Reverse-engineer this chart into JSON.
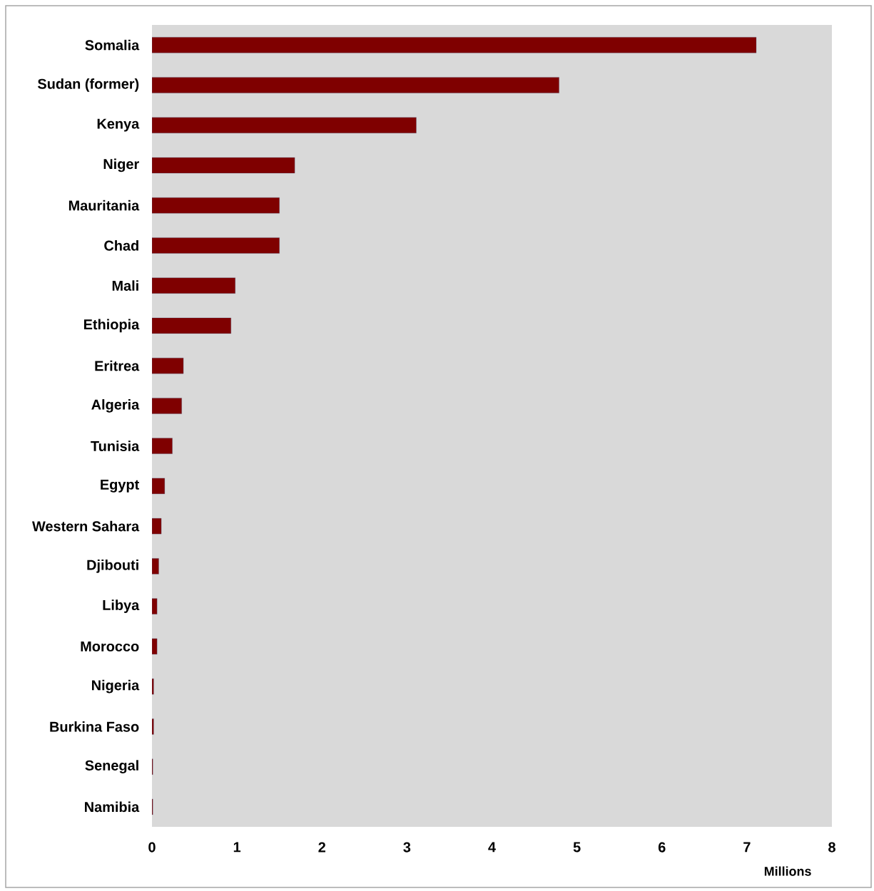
{
  "chart_data": {
    "type": "bar",
    "orientation": "horizontal",
    "xlabel": "Millions",
    "categories": [
      "Somalia",
      "Sudan (former)",
      "Kenya",
      "Niger",
      "Mauritania",
      "Chad",
      "Mali",
      "Ethiopia",
      "Eritrea",
      "Algeria",
      "Tunisia",
      "Egypt",
      "Western Sahara",
      "Djibouti",
      "Libya",
      "Morocco",
      "Nigeria",
      "Burkina Faso",
      "Senegal",
      "Namibia"
    ],
    "values": [
      7.11,
      4.79,
      3.11,
      1.68,
      1.5,
      1.5,
      0.98,
      0.93,
      0.37,
      0.35,
      0.24,
      0.15,
      0.11,
      0.08,
      0.06,
      0.06,
      0.02,
      0.02,
      0.01,
      0.01
    ],
    "color": "#7f0000",
    "xlim": [
      0,
      8
    ],
    "xticks": [
      0,
      1,
      2,
      3,
      4,
      5,
      6,
      7,
      8
    ]
  }
}
